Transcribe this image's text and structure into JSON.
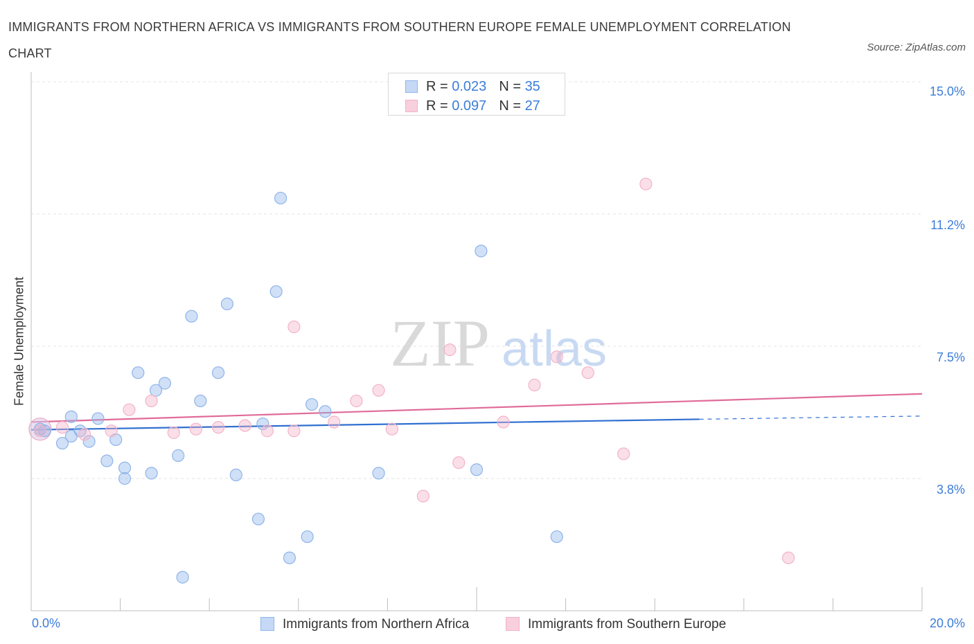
{
  "title": "IMMIGRANTS FROM NORTHERN AFRICA VS IMMIGRANTS FROM SOUTHERN EUROPE FEMALE UNEMPLOYMENT CORRELATION CHART",
  "source": "Source: ZipAtlas.com",
  "watermark": {
    "zip": "ZIP",
    "atlas": "atlas"
  },
  "legend": {
    "series1": {
      "r_label": "R =",
      "r_value": "0.023",
      "n_label": "N =",
      "n_value": "35"
    },
    "series2": {
      "r_label": "R =",
      "r_value": "0.097",
      "n_label": "N =",
      "n_value": "27"
    }
  },
  "chart_data": {
    "type": "scatter",
    "title": "IMMIGRANTS FROM NORTHERN AFRICA VS IMMIGRANTS FROM SOUTHERN EUROPE FEMALE UNEMPLOYMENT CORRELATION CHART",
    "xlabel": "",
    "ylabel": "Female Unemployment",
    "xlim": [
      0,
      20
    ],
    "ylim": [
      0,
      15
    ],
    "x_tick_labels": [
      "0.0%",
      "20.0%"
    ],
    "y_tick_labels": [
      "15.0%",
      "11.2%",
      "7.5%",
      "3.8%"
    ],
    "y_tick_values": [
      15.0,
      11.25,
      7.5,
      3.75
    ],
    "grid": "horizontal dashed",
    "legend_position": "top-center",
    "series": [
      {
        "name": "Immigrants from Northern Africa",
        "color": "#8fb4ea",
        "line_color": "#2f6fd0",
        "R": 0.023,
        "N": 35,
        "trend": {
          "x": [
            0,
            15.0
          ],
          "y": [
            5.13,
            5.43
          ],
          "dashed_to": [
            20,
            5.52
          ]
        },
        "points": [
          [
            0.3,
            5.1
          ],
          [
            0.9,
            5.5
          ],
          [
            0.7,
            4.75
          ],
          [
            0.9,
            4.95
          ],
          [
            1.1,
            5.1
          ],
          [
            1.3,
            4.8
          ],
          [
            1.5,
            5.45
          ],
          [
            1.9,
            4.85
          ],
          [
            1.7,
            4.25
          ],
          [
            2.1,
            4.05
          ],
          [
            2.1,
            3.75
          ],
          [
            2.4,
            6.75
          ],
          [
            2.7,
            3.9
          ],
          [
            2.8,
            6.25
          ],
          [
            3.0,
            6.45
          ],
          [
            3.3,
            4.4
          ],
          [
            3.6,
            8.35
          ],
          [
            3.4,
            0.95
          ],
          [
            3.8,
            5.95
          ],
          [
            4.2,
            6.75
          ],
          [
            4.4,
            8.7
          ],
          [
            4.6,
            3.85
          ],
          [
            5.1,
            2.6
          ],
          [
            5.2,
            5.3
          ],
          [
            5.5,
            9.05
          ],
          [
            5.6,
            11.7
          ],
          [
            5.8,
            1.5
          ],
          [
            6.3,
            5.85
          ],
          [
            6.2,
            2.1
          ],
          [
            6.6,
            5.65
          ],
          [
            7.8,
            3.9
          ],
          [
            10.0,
            4.0
          ],
          [
            10.1,
            10.2
          ],
          [
            11.8,
            2.1
          ],
          [
            0.2,
            5.15
          ]
        ]
      },
      {
        "name": "Immigrants from Southern Europe",
        "color": "#f3b3c8",
        "line_color": "#e06b98",
        "R": 0.097,
        "N": 27,
        "trend": {
          "x": [
            0,
            20
          ],
          "y": [
            5.35,
            6.15
          ]
        },
        "points": [
          [
            0.2,
            5.1
          ],
          [
            0.7,
            5.2
          ],
          [
            1.2,
            5.0
          ],
          [
            1.8,
            5.1
          ],
          [
            2.2,
            5.7
          ],
          [
            2.7,
            5.95
          ],
          [
            3.2,
            5.05
          ],
          [
            3.7,
            5.15
          ],
          [
            4.2,
            5.2
          ],
          [
            4.8,
            5.25
          ],
          [
            5.3,
            5.1
          ],
          [
            5.9,
            5.1
          ],
          [
            5.9,
            8.05
          ],
          [
            6.8,
            5.35
          ],
          [
            7.3,
            5.95
          ],
          [
            7.8,
            6.25
          ],
          [
            8.1,
            5.15
          ],
          [
            8.8,
            3.25
          ],
          [
            9.4,
            7.4
          ],
          [
            9.6,
            4.2
          ],
          [
            10.6,
            5.35
          ],
          [
            11.3,
            6.4
          ],
          [
            11.8,
            7.2
          ],
          [
            12.5,
            6.75
          ],
          [
            13.3,
            4.45
          ],
          [
            13.8,
            12.1
          ],
          [
            17.0,
            1.5
          ]
        ]
      }
    ]
  },
  "bottom_legend": {
    "series1": "Immigrants from Northern Africa",
    "series2": "Immigrants from Southern Europe"
  }
}
